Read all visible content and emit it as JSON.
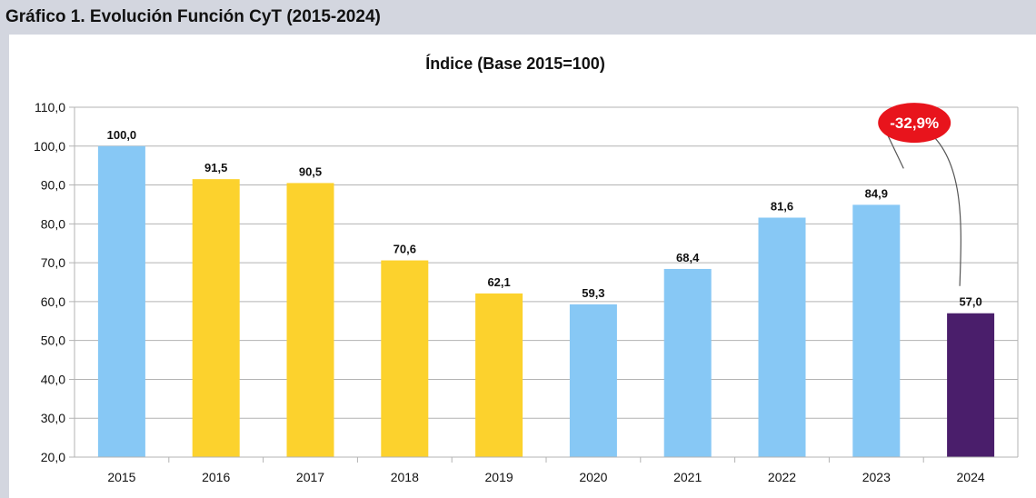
{
  "header": {
    "title": "Gráfico 1. Evolución Función CyT (2015-2024)"
  },
  "chart_data": {
    "type": "bar",
    "title": "Índice (Base 2015=100)",
    "xlabel": "",
    "ylabel": "",
    "categories": [
      "2015",
      "2016",
      "2017",
      "2018",
      "2019",
      "2020",
      "2021",
      "2022",
      "2023",
      "2024"
    ],
    "values": [
      100.0,
      91.5,
      90.5,
      70.6,
      62.1,
      59.3,
      68.4,
      81.6,
      84.9,
      57.0
    ],
    "value_labels": [
      "100,0",
      "91,5",
      "90,5",
      "70,6",
      "62,1",
      "59,3",
      "68,4",
      "81,6",
      "84,9",
      "57,0"
    ],
    "bar_colors": [
      "#87c8f5",
      "#fcd22d",
      "#fcd22d",
      "#fcd22d",
      "#fcd22d",
      "#87c8f5",
      "#87c8f5",
      "#87c8f5",
      "#87c8f5",
      "#4a1e6b"
    ],
    "ylim": [
      20,
      110
    ],
    "yticks": [
      20,
      30,
      40,
      50,
      60,
      70,
      80,
      90,
      100,
      110
    ],
    "ytick_labels": [
      "20,0",
      "30,0",
      "40,0",
      "50,0",
      "60,0",
      "70,0",
      "80,0",
      "90,0",
      "100,0",
      "110,0"
    ],
    "grid": true,
    "legend": "none",
    "annotation": {
      "text": "-32,9%",
      "from": "2023",
      "to": "2024",
      "color": "#e8141c"
    }
  }
}
